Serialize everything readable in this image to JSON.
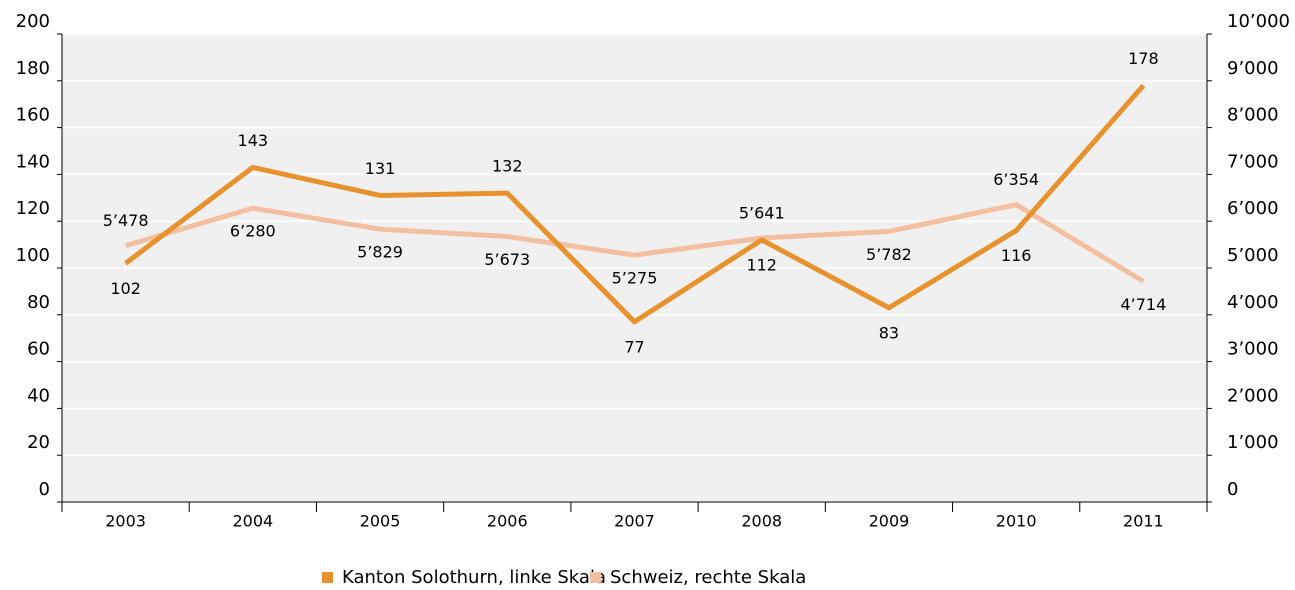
{
  "chart_data": {
    "type": "line",
    "categories": [
      "2003",
      "2004",
      "2005",
      "2006",
      "2007",
      "2008",
      "2009",
      "2010",
      "2011"
    ],
    "series": [
      {
        "name": "Kanton Solothurn, linke Skala",
        "color": "#e8922e",
        "values": [
          102,
          143,
          131,
          132,
          77,
          112,
          83,
          116,
          178
        ]
      },
      {
        "name": "Schweiz, rechte Skala",
        "color": "#f4bfa0",
        "axis": "y2",
        "values": [
          5478,
          6280,
          5829,
          5673,
          5275,
          5641,
          5782,
          6354,
          4714
        ],
        "value_labels": [
          "5’478",
          "6’280",
          "5’829",
          "5’673",
          "5’275",
          "5’641",
          "5’782",
          "6’354",
          "4’714"
        ]
      }
    ],
    "ylim": [
      0,
      200
    ],
    "yticks": [
      0,
      20,
      40,
      60,
      80,
      100,
      120,
      140,
      160,
      180,
      200
    ],
    "y2lim": [
      0,
      10000
    ],
    "y2ticks": [
      0,
      {
        "value": 1000,
        "label": "1’000"
      },
      {
        "value": 2000,
        "label": "2’000"
      },
      {
        "value": 3000,
        "label": "3’000"
      },
      {
        "value": 4000,
        "label": "4’000"
      },
      {
        "value": 5000,
        "label": "5’000"
      },
      {
        "value": 6000,
        "label": "6’000"
      },
      {
        "value": 7000,
        "label": "7’000"
      },
      {
        "value": 8000,
        "label": "8’000"
      },
      {
        "value": 9000,
        "label": "9’000"
      },
      {
        "value": 10000,
        "label": "10’000"
      }
    ],
    "grid": true
  }
}
